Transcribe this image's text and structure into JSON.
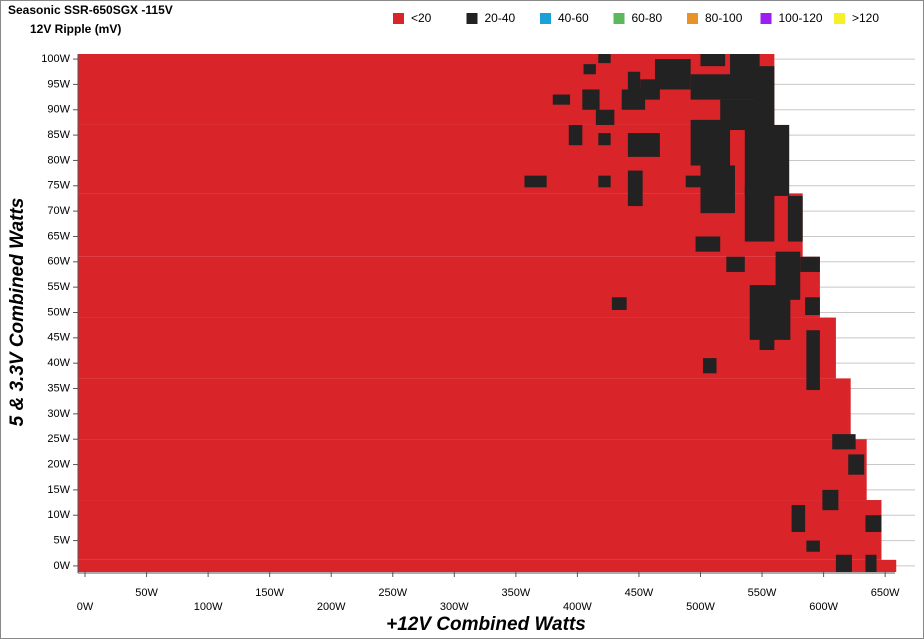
{
  "chart_data": {
    "type": "heatmap",
    "title": "Seasonic SSR-650SGX -115V",
    "subtitle": "12V Ripple (mV)",
    "x_label": "+12V Combined Watts",
    "y_label": "5 & 3.3V Combined Watts",
    "xlim": [
      -5.7,
      658
    ],
    "ylim": [
      -1.2,
      101
    ],
    "grid": true,
    "xticks": [
      {
        "value": 0,
        "label": "0W"
      },
      {
        "value": 50,
        "label": "50W"
      },
      {
        "value": 100,
        "label": "100W"
      },
      {
        "value": 150,
        "label": "150W"
      },
      {
        "value": 200,
        "label": "200W"
      },
      {
        "value": 250,
        "label": "250W"
      },
      {
        "value": 300,
        "label": "300W"
      },
      {
        "value": 350,
        "label": "350W"
      },
      {
        "value": 400,
        "label": "400W"
      },
      {
        "value": 450,
        "label": "450W"
      },
      {
        "value": 500,
        "label": "500W"
      },
      {
        "value": 550,
        "label": "550W"
      },
      {
        "value": 600,
        "label": "600W"
      },
      {
        "value": 650,
        "label": "650W"
      }
    ],
    "yticks": [
      {
        "value": 0,
        "label": "0W"
      },
      {
        "value": 5,
        "label": "5W"
      },
      {
        "value": 10,
        "label": "10W"
      },
      {
        "value": 15,
        "label": "15W"
      },
      {
        "value": 20,
        "label": "20W"
      },
      {
        "value": 25,
        "label": "25W"
      },
      {
        "value": 30,
        "label": "30W"
      },
      {
        "value": 35,
        "label": "35W"
      },
      {
        "value": 40,
        "label": "40W"
      },
      {
        "value": 45,
        "label": "45W"
      },
      {
        "value": 50,
        "label": "50W"
      },
      {
        "value": 55,
        "label": "55W"
      },
      {
        "value": 60,
        "label": "60W"
      },
      {
        "value": 65,
        "label": "65W"
      },
      {
        "value": 70,
        "label": "70W"
      },
      {
        "value": 75,
        "label": "75W"
      },
      {
        "value": 80,
        "label": "80W"
      },
      {
        "value": 85,
        "label": "85W"
      },
      {
        "value": 90,
        "label": "90W"
      },
      {
        "value": 95,
        "label": "95W"
      },
      {
        "value": 100,
        "label": "100W"
      }
    ],
    "series": [
      {
        "name": "<20",
        "color": "#d9242a",
        "rects": [
          [
            -5.7,
            560,
            87,
            101
          ],
          [
            -5.7,
            572,
            73.5,
            87
          ],
          [
            -5.7,
            583,
            61,
            73.5
          ],
          [
            -5.7,
            597,
            49,
            61
          ],
          [
            -5.7,
            610,
            37,
            49
          ],
          [
            -5.7,
            622,
            25,
            37
          ],
          [
            -5.7,
            635,
            13,
            25
          ],
          [
            -5.7,
            647,
            1.2,
            13
          ],
          [
            -5.7,
            659,
            -1.2,
            1.2
          ]
        ]
      },
      {
        "name": "20-40",
        "color": "#222222",
        "rects": [
          [
            417,
            427,
            99.2,
            101
          ],
          [
            405,
            415,
            97,
            99
          ],
          [
            441,
            451,
            94,
            97.5
          ],
          [
            380,
            394,
            91,
            93
          ],
          [
            404,
            418,
            90,
            94
          ],
          [
            415,
            430,
            87,
            90
          ],
          [
            436,
            455,
            90,
            94
          ],
          [
            451,
            467,
            92,
            96
          ],
          [
            463,
            492,
            94,
            100
          ],
          [
            500,
            520,
            98.6,
            101
          ],
          [
            492,
            536,
            92,
            97
          ],
          [
            524,
            548,
            92,
            101
          ],
          [
            544,
            560,
            86,
            98.6
          ],
          [
            516,
            548,
            86,
            92
          ],
          [
            393,
            404,
            83,
            87
          ],
          [
            417,
            427,
            83,
            85.4
          ],
          [
            441,
            467,
            80.7,
            85.4
          ],
          [
            492,
            524,
            79,
            88
          ],
          [
            536,
            572,
            73,
            87
          ],
          [
            357,
            375,
            74.7,
            77
          ],
          [
            417,
            427,
            74.7,
            77
          ],
          [
            441,
            453,
            71,
            78
          ],
          [
            488,
            504,
            74.7,
            77
          ],
          [
            500,
            528,
            69.6,
            79
          ],
          [
            536,
            560,
            64,
            75
          ],
          [
            571,
            583,
            64,
            73
          ],
          [
            496,
            516,
            62,
            65
          ],
          [
            521,
            536,
            58,
            61
          ],
          [
            561,
            581,
            52.5,
            62
          ],
          [
            581,
            597,
            58,
            61
          ],
          [
            540,
            573,
            44.6,
            55.4
          ],
          [
            548,
            560,
            42.6,
            46.5
          ],
          [
            585,
            597,
            49.5,
            53
          ],
          [
            428,
            440,
            50.5,
            53
          ],
          [
            502,
            513,
            38,
            41
          ],
          [
            586,
            597,
            34.7,
            46.5
          ],
          [
            607,
            626,
            23,
            26
          ],
          [
            620,
            633,
            18,
            22
          ],
          [
            599,
            612,
            11,
            15
          ],
          [
            574,
            585,
            6.7,
            12
          ],
          [
            634,
            647,
            6.7,
            10
          ],
          [
            586,
            597,
            2.8,
            5
          ],
          [
            610,
            623,
            -1.2,
            2.2
          ],
          [
            634,
            643,
            -1.2,
            2.2
          ]
        ]
      },
      {
        "name": "40-60",
        "color": "#1ba1d9",
        "rects": []
      },
      {
        "name": "60-80",
        "color": "#5cb85c",
        "rects": []
      },
      {
        "name": "80-100",
        "color": "#e8922a",
        "rects": []
      },
      {
        "name": "100-120",
        "color": "#9b1ff0",
        "rects": []
      },
      {
        "name": ">120",
        "color": "#f5f02a",
        "rects": []
      }
    ]
  }
}
